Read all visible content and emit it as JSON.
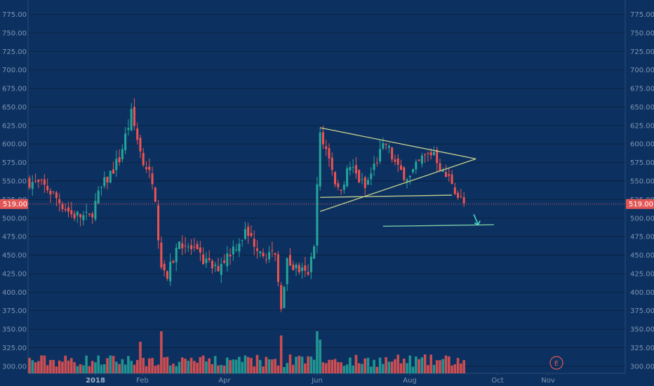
{
  "chart_data": {
    "type": "candlestick",
    "y_axis": {
      "ticks": [
        300,
        325,
        350,
        375,
        400,
        425,
        450,
        475,
        500,
        525,
        550,
        575,
        600,
        625,
        650,
        675,
        700,
        725,
        750,
        775
      ],
      "tick_labels": [
        "300.00",
        "325.00",
        "350.00",
        "375.00",
        "400.00",
        "425.00",
        "450.00",
        "475.00",
        "500.00",
        "525.00",
        "550.00",
        "575.00",
        "600.00",
        "625.00",
        "650.00",
        "675.00",
        "700.00",
        "725.00",
        "750.00",
        "775.00"
      ],
      "ylim": [
        297,
        785
      ],
      "both_sides": true
    },
    "x_axis": {
      "tick_labels": [
        "2018",
        "Feb",
        "Apr",
        "Jun",
        "Aug",
        "Oct",
        "Nov"
      ],
      "bold_labels": [
        "2018"
      ]
    },
    "last_price": 519,
    "last_price_label": "519.00",
    "price_key_points": [
      {
        "bar": 0,
        "price": 550
      },
      {
        "bar": 6,
        "price": 540
      },
      {
        "bar": 14,
        "price": 505
      },
      {
        "bar": 20,
        "price": 500
      },
      {
        "bar": 24,
        "price": 540
      },
      {
        "bar": 30,
        "price": 580
      },
      {
        "bar": 34,
        "price": 640
      },
      {
        "bar": 37,
        "price": 590
      },
      {
        "bar": 40,
        "price": 560
      },
      {
        "bar": 42,
        "price": 515
      },
      {
        "bar": 44,
        "price": 440
      },
      {
        "bar": 46,
        "price": 420
      },
      {
        "bar": 50,
        "price": 470
      },
      {
        "bar": 56,
        "price": 450
      },
      {
        "bar": 62,
        "price": 430
      },
      {
        "bar": 68,
        "price": 460
      },
      {
        "bar": 72,
        "price": 480
      },
      {
        "bar": 78,
        "price": 455
      },
      {
        "bar": 82,
        "price": 445
      },
      {
        "bar": 84,
        "price": 385
      },
      {
        "bar": 86,
        "price": 440
      },
      {
        "bar": 90,
        "price": 430
      },
      {
        "bar": 93,
        "price": 420
      },
      {
        "bar": 95,
        "price": 470
      },
      {
        "bar": 97,
        "price": 610
      },
      {
        "bar": 100,
        "price": 585
      },
      {
        "bar": 103,
        "price": 535
      },
      {
        "bar": 107,
        "price": 570
      },
      {
        "bar": 112,
        "price": 540
      },
      {
        "bar": 116,
        "price": 580
      },
      {
        "bar": 119,
        "price": 600
      },
      {
        "bar": 123,
        "price": 565
      },
      {
        "bar": 127,
        "price": 555
      },
      {
        "bar": 131,
        "price": 580
      },
      {
        "bar": 135,
        "price": 590
      },
      {
        "bar": 138,
        "price": 560
      },
      {
        "bar": 141,
        "price": 550
      },
      {
        "bar": 143,
        "price": 530
      },
      {
        "bar": 145,
        "price": 519
      }
    ],
    "volume_spikes": [
      {
        "bar": 37,
        "level": 0.75
      },
      {
        "bar": 44,
        "level": 1.0
      },
      {
        "bar": 84,
        "level": 0.9
      },
      {
        "bar": 96,
        "level": 1.0
      },
      {
        "bar": 97,
        "level": 0.8
      }
    ],
    "annotations": {
      "triangle_upper_line": [
        {
          "bar": 97,
          "price": 622
        },
        {
          "bar": 149,
          "price": 580
        }
      ],
      "triangle_lower_line": [
        {
          "bar": 97,
          "price": 509
        },
        {
          "bar": 149,
          "price": 580
        }
      ],
      "horizontal_support": [
        {
          "bar": 97,
          "price": 528
        },
        {
          "bar": 141,
          "price": 531
        }
      ],
      "target_line": [
        {
          "bar": 118,
          "price": 489
        },
        {
          "bar": 155,
          "price": 491
        }
      ],
      "arrow": "down-right",
      "earnings_marker": "E"
    },
    "colors": {
      "background": "#0c3161",
      "grid": "#0a2445",
      "up_candle": "#26a69a",
      "down_candle": "#ef5350",
      "price_line": "#e35656",
      "annotation": "#c8cf8e",
      "arrow": "#4fd6c8",
      "axis_text": "#7f93ad"
    }
  }
}
